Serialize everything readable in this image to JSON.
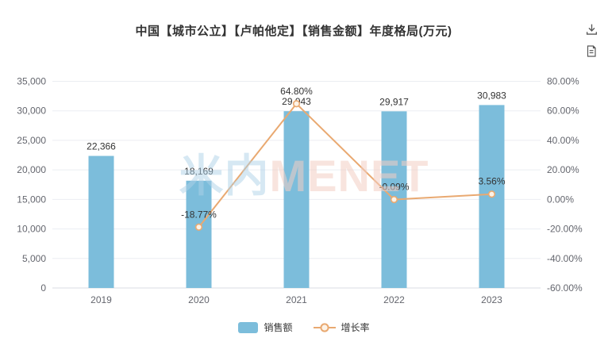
{
  "header": {
    "title": "中国【城市公立】【卢帕他定】【销售金额】年度格局(万元)",
    "icons": [
      {
        "name": "download-icon"
      },
      {
        "name": "report-icon"
      }
    ]
  },
  "watermark": {
    "cn": "米内",
    "en": "MENET"
  },
  "colors": {
    "bar": "#7CBDDB",
    "line": "#E9A971",
    "marker_fill": "#FDF3E7",
    "grid": "#EBEDF2",
    "axis_line": "#D9DCE3",
    "tick_text": "#64666E",
    "label_text": "#333333",
    "icon": "#595959"
  },
  "chart_data": {
    "type": "bar",
    "title": "中国【城市公立】【卢帕他定】【销售金额】年度格局(万元)",
    "categories": [
      "2019",
      "2020",
      "2021",
      "2022",
      "2023"
    ],
    "series": [
      {
        "name": "销售额",
        "type": "bar",
        "axis": "left",
        "color": "#7CBDDB",
        "values": [
          22366,
          18169,
          29943,
          29917,
          30983
        ],
        "labels": [
          "22,366",
          "18,169",
          "29,943",
          "29,917",
          "30,983"
        ]
      },
      {
        "name": "增长率",
        "type": "line",
        "axis": "right",
        "color": "#E9A971",
        "values": [
          null,
          -18.77,
          64.8,
          -0.09,
          3.56
        ],
        "labels": [
          null,
          "-18.77%",
          "64.80%",
          "-0.09%",
          "3.56%"
        ]
      }
    ],
    "left_axis": {
      "min": 0,
      "max": 35000,
      "step": 5000,
      "tick_labels": [
        "0",
        "5,000",
        "10,000",
        "15,000",
        "20,000",
        "25,000",
        "30,000",
        "35,000"
      ]
    },
    "right_axis": {
      "min": -60,
      "max": 80,
      "step": 20,
      "tick_labels": [
        "-60.00%",
        "-40.00%",
        "-20.00%",
        "0.00%",
        "20.00%",
        "40.00%",
        "60.00%",
        "80.00%"
      ]
    },
    "grid": true,
    "legend_position": "bottom"
  }
}
